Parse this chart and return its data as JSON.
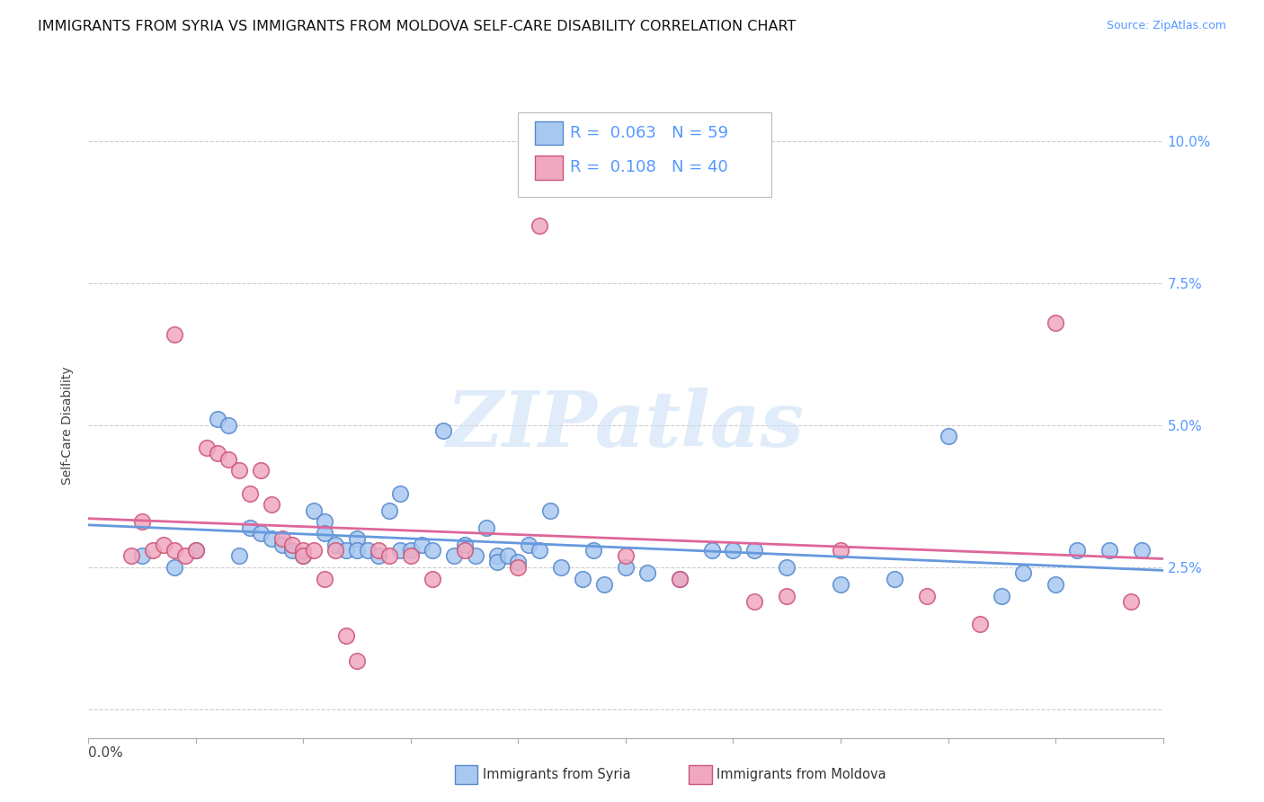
{
  "title": "IMMIGRANTS FROM SYRIA VS IMMIGRANTS FROM MOLDOVA SELF-CARE DISABILITY CORRELATION CHART",
  "source": "Source: ZipAtlas.com",
  "ylabel": "Self-Care Disability",
  "xlim": [
    0.0,
    0.1
  ],
  "ylim": [
    -0.005,
    0.105
  ],
  "yticks": [
    0.0,
    0.025,
    0.05,
    0.075,
    0.1
  ],
  "ytick_labels": [
    "",
    "2.5%",
    "5.0%",
    "7.5%",
    "10.0%"
  ],
  "background_color": "#ffffff",
  "watermark": "ZIPatlas",
  "legend_R_syria": "0.063",
  "legend_N_syria": "59",
  "legend_R_moldova": "0.108",
  "legend_N_moldova": "40",
  "syria_color": "#a8c8f0",
  "moldova_color": "#f0a8c0",
  "syria_edge_color": "#5588cc",
  "moldova_edge_color": "#cc5577",
  "syria_line_color": "#6699dd",
  "moldova_line_color": "#dd6699",
  "syria_scatter_x": [
    0.005,
    0.008,
    0.01,
    0.012,
    0.013,
    0.014,
    0.015,
    0.016,
    0.017,
    0.018,
    0.019,
    0.02,
    0.021,
    0.022,
    0.022,
    0.023,
    0.024,
    0.025,
    0.025,
    0.026,
    0.027,
    0.028,
    0.029,
    0.029,
    0.03,
    0.031,
    0.032,
    0.033,
    0.034,
    0.035,
    0.036,
    0.037,
    0.038,
    0.038,
    0.039,
    0.04,
    0.041,
    0.042,
    0.043,
    0.044,
    0.046,
    0.047,
    0.048,
    0.05,
    0.052,
    0.055,
    0.058,
    0.06,
    0.062,
    0.065,
    0.07,
    0.075,
    0.08,
    0.085,
    0.087,
    0.09,
    0.092,
    0.095,
    0.098
  ],
  "syria_scatter_y": [
    0.027,
    0.025,
    0.028,
    0.051,
    0.05,
    0.027,
    0.032,
    0.031,
    0.03,
    0.029,
    0.028,
    0.027,
    0.035,
    0.033,
    0.031,
    0.029,
    0.028,
    0.03,
    0.028,
    0.028,
    0.027,
    0.035,
    0.038,
    0.028,
    0.028,
    0.029,
    0.028,
    0.049,
    0.027,
    0.029,
    0.027,
    0.032,
    0.027,
    0.026,
    0.027,
    0.026,
    0.029,
    0.028,
    0.035,
    0.025,
    0.023,
    0.028,
    0.022,
    0.025,
    0.024,
    0.023,
    0.028,
    0.028,
    0.028,
    0.025,
    0.022,
    0.023,
    0.048,
    0.02,
    0.024,
    0.022,
    0.028,
    0.028,
    0.028
  ],
  "moldova_scatter_x": [
    0.004,
    0.005,
    0.006,
    0.007,
    0.008,
    0.008,
    0.009,
    0.01,
    0.011,
    0.012,
    0.013,
    0.014,
    0.015,
    0.016,
    0.017,
    0.018,
    0.019,
    0.02,
    0.02,
    0.021,
    0.022,
    0.023,
    0.024,
    0.025,
    0.027,
    0.028,
    0.03,
    0.032,
    0.035,
    0.04,
    0.042,
    0.05,
    0.055,
    0.062,
    0.065,
    0.07,
    0.078,
    0.083,
    0.09,
    0.097
  ],
  "moldova_scatter_y": [
    0.027,
    0.033,
    0.028,
    0.029,
    0.066,
    0.028,
    0.027,
    0.028,
    0.046,
    0.045,
    0.044,
    0.042,
    0.038,
    0.042,
    0.036,
    0.03,
    0.029,
    0.028,
    0.027,
    0.028,
    0.023,
    0.028,
    0.013,
    0.0085,
    0.028,
    0.027,
    0.027,
    0.023,
    0.028,
    0.025,
    0.085,
    0.027,
    0.023,
    0.019,
    0.02,
    0.028,
    0.02,
    0.015,
    0.068,
    0.019
  ],
  "grid_color": "#cccccc",
  "title_fontsize": 11.5,
  "source_fontsize": 9,
  "axis_label_fontsize": 10,
  "tick_fontsize": 11,
  "legend_fontsize": 13
}
